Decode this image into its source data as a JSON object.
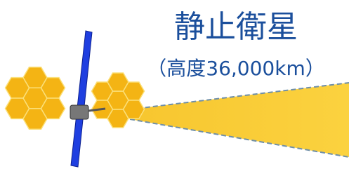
{
  "header": {
    "title": "静止衛星",
    "subtitle": "（高度36,000km）"
  }
}
